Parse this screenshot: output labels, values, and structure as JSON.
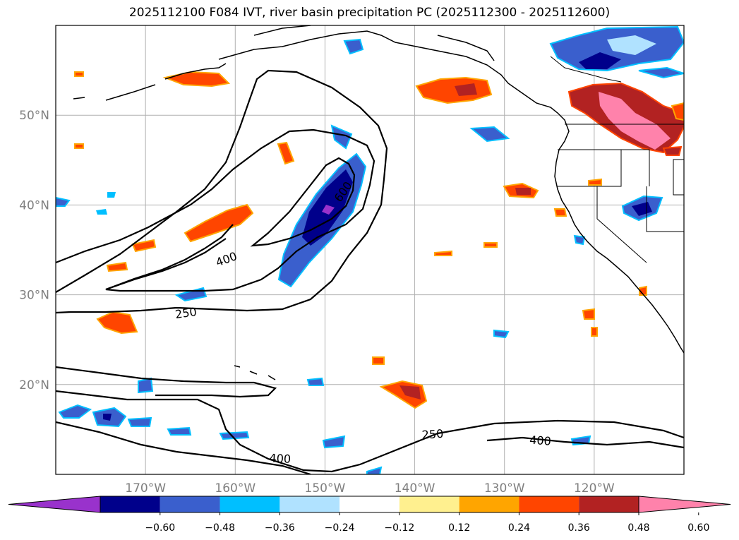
{
  "title": "2025112100 F084 IVT, river basin precipitation PC (2025112300 - 2025112600)",
  "map": {
    "lon_range": [
      -180,
      -110
    ],
    "lat_range": [
      10,
      60
    ],
    "lat_ticks": [
      {
        "value": 20,
        "label": "20°N"
      },
      {
        "value": 30,
        "label": "30°N"
      },
      {
        "value": 40,
        "label": "40°N"
      },
      {
        "value": 50,
        "label": "50°N"
      }
    ],
    "lon_ticks": [
      {
        "value": -170,
        "label": "170°W"
      },
      {
        "value": -160,
        "label": "160°W"
      },
      {
        "value": -150,
        "label": "150°W"
      },
      {
        "value": -140,
        "label": "140°W"
      },
      {
        "value": -130,
        "label": "130°W"
      },
      {
        "value": -120,
        "label": "120°W"
      }
    ],
    "contour_labels": [
      {
        "text": "600",
        "lon": -148.0,
        "lat": 41.5,
        "rotate": -55
      },
      {
        "text": "400",
        "lon": -161.0,
        "lat": 34.0,
        "rotate": -20
      },
      {
        "text": "250",
        "lon": -165.5,
        "lat": 28.0,
        "rotate": -8
      },
      {
        "text": "250",
        "lon": -138.0,
        "lat": 14.5,
        "rotate": -4
      },
      {
        "text": "400",
        "lon": -126.0,
        "lat": 13.8,
        "rotate": 4
      },
      {
        "text": "400",
        "lon": -155.0,
        "lat": 11.8,
        "rotate": 3
      }
    ]
  },
  "colorbar": {
    "ticks": [
      "−0.60",
      "−0.48",
      "−0.36",
      "−0.24",
      "−0.12",
      "0.12",
      "0.24",
      "0.36",
      "0.48",
      "0.60"
    ],
    "colors": [
      "#9932cc",
      "#00008b",
      "#3a5fcd",
      "#00bfff",
      "#b0e2ff",
      "#ffffff",
      "#fff08f",
      "#ffa500",
      "#ff4500",
      "#b22222",
      "#ff82ab"
    ]
  }
}
